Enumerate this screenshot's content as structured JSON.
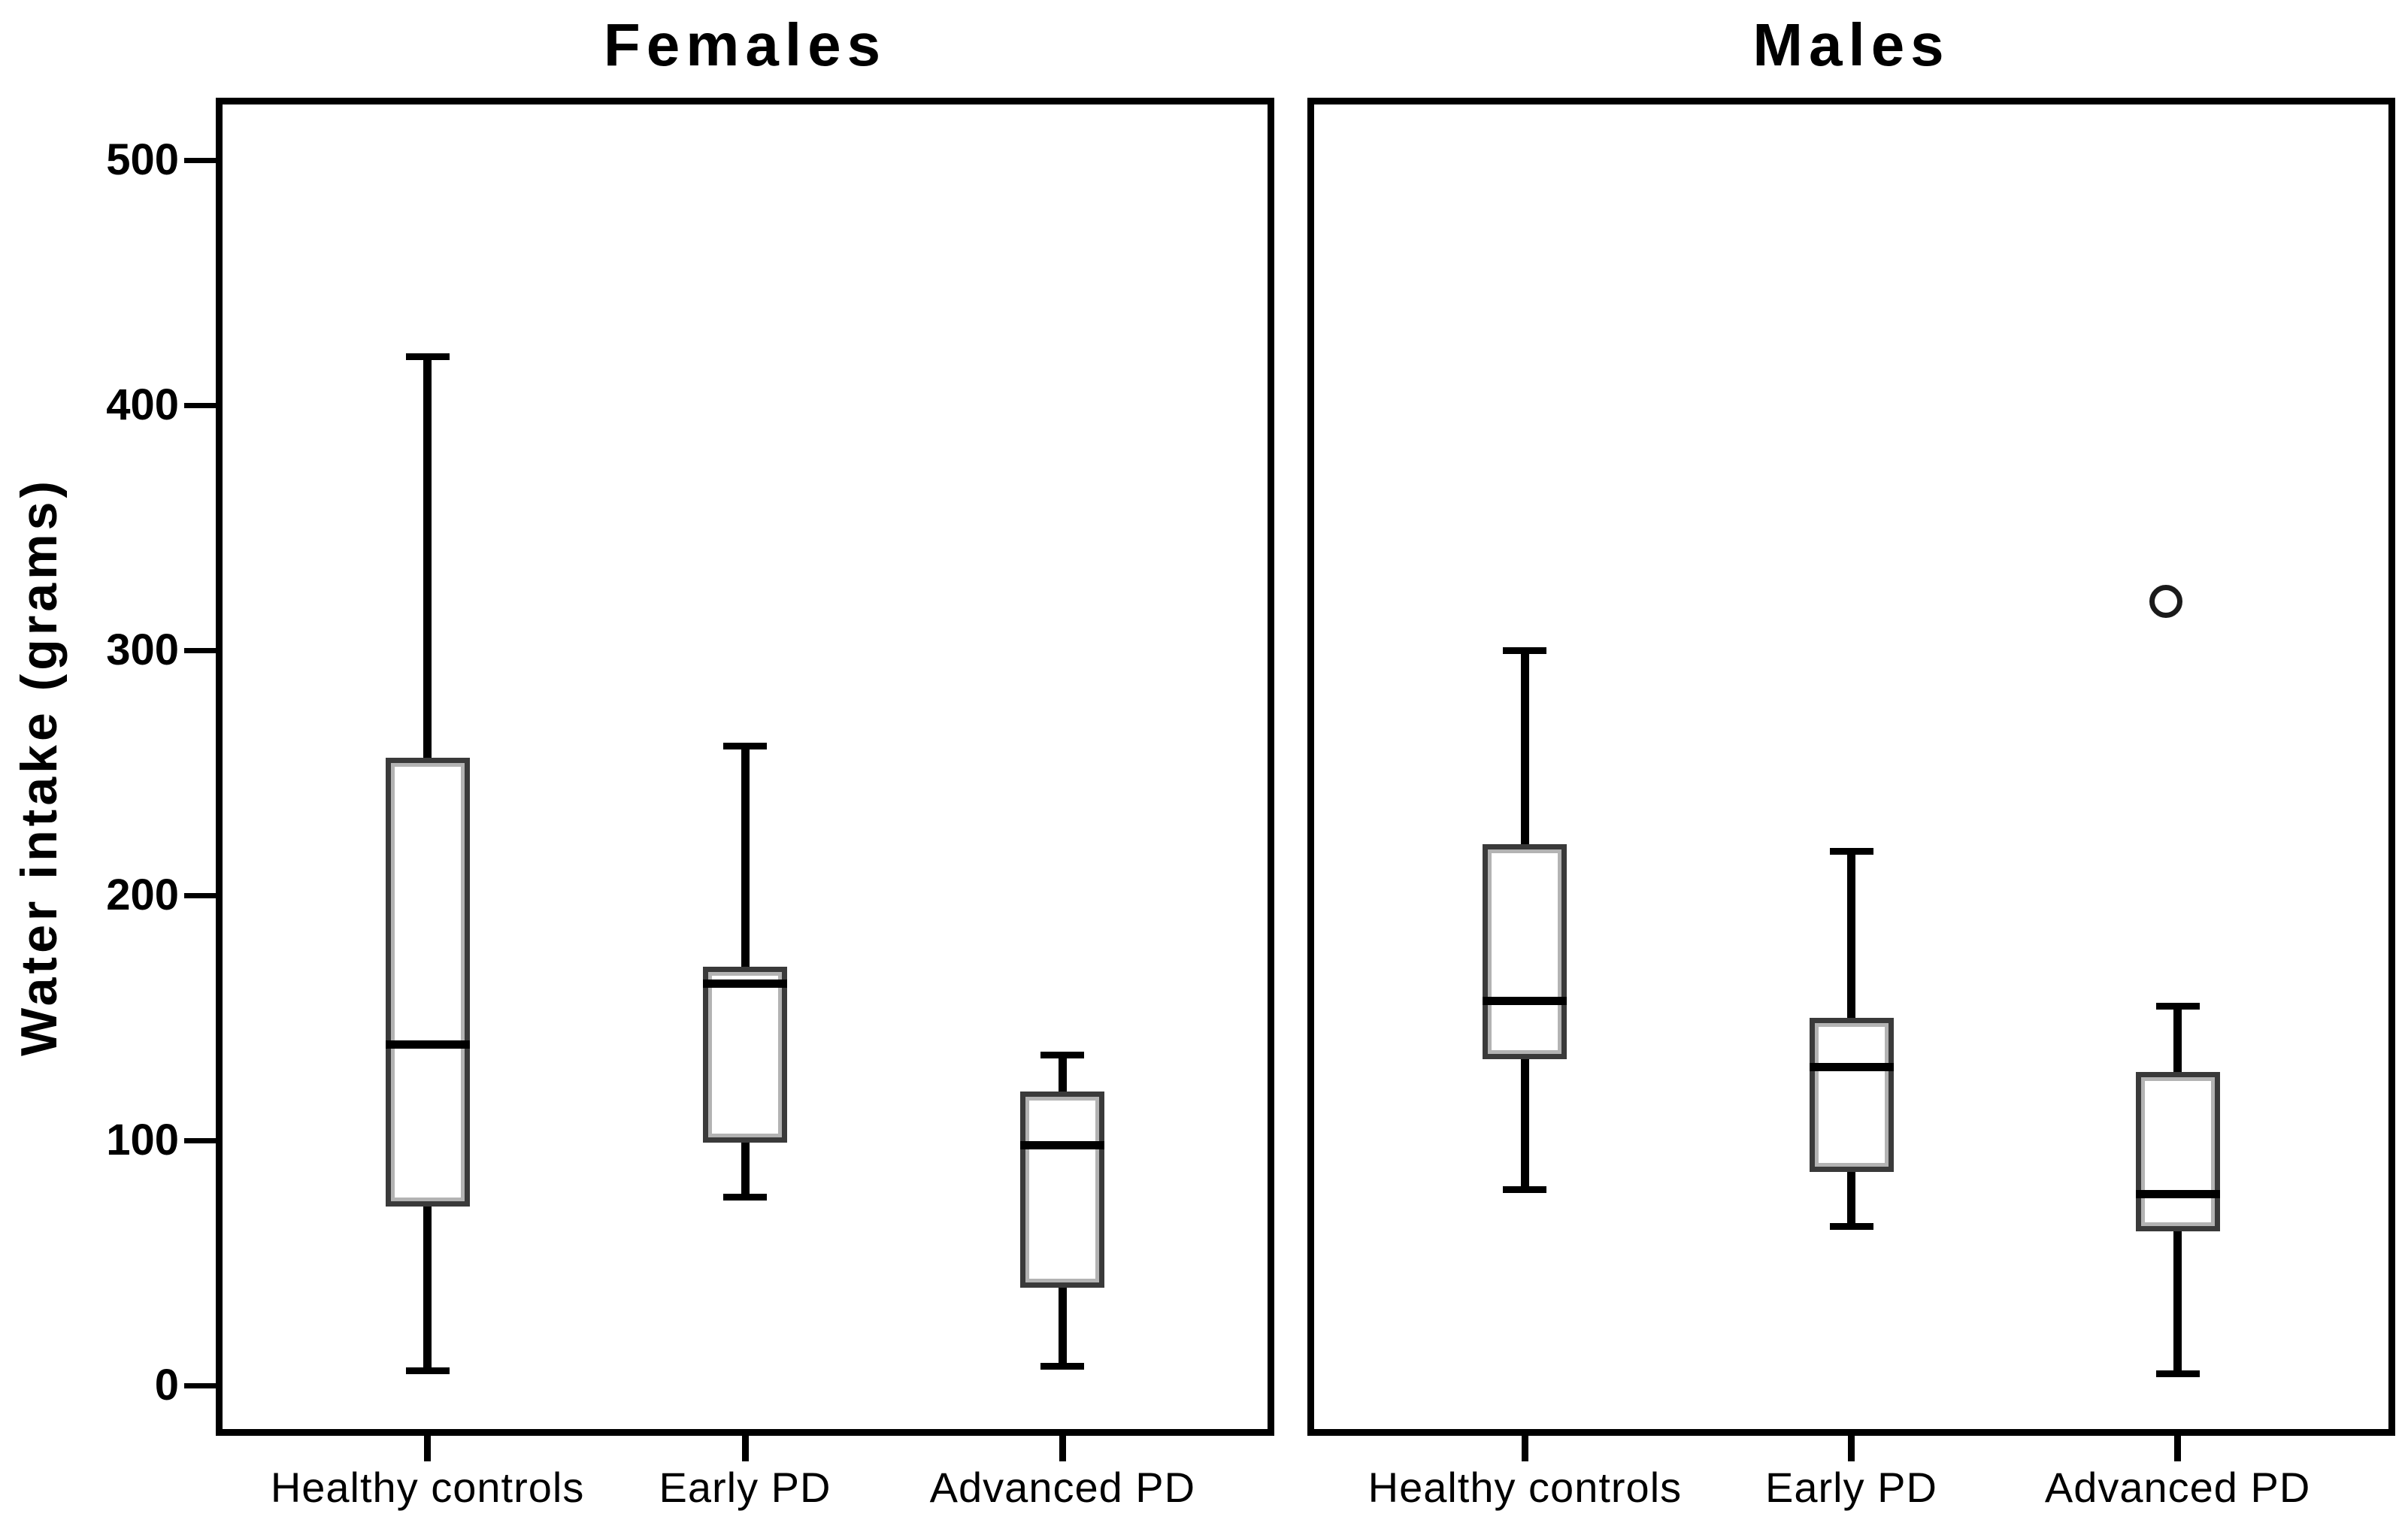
{
  "chart_data": {
    "type": "boxplot",
    "ylabel": "Water intake (grams)",
    "yticks": [
      0,
      100,
      200,
      300,
      400,
      500
    ],
    "ylim": [
      -19,
      525.5
    ],
    "grid": false,
    "legend": "none",
    "categories": [
      "Healthy controls",
      "Early PD",
      "Advanced PD"
    ],
    "panels": [
      {
        "title": "Females",
        "boxes": [
          {
            "category": "Healthy controls",
            "whisker_low": 6,
            "q1": 73,
            "median": 139,
            "q3": 256,
            "whisker_high": 420,
            "outliers": []
          },
          {
            "category": "Early PD",
            "whisker_low": 77,
            "q1": 99,
            "median": 164,
            "q3": 171,
            "whisker_high": 261,
            "outliers": []
          },
          {
            "category": "Advanced PD",
            "whisker_low": 8,
            "q1": 40,
            "median": 98,
            "q3": 120,
            "whisker_high": 135,
            "outliers": []
          }
        ]
      },
      {
        "title": "Males",
        "boxes": [
          {
            "category": "Healthy controls",
            "whisker_low": 80,
            "q1": 133,
            "median": 157,
            "q3": 221,
            "whisker_high": 300,
            "outliers": []
          },
          {
            "category": "Early PD",
            "whisker_low": 65,
            "q1": 87,
            "median": 130,
            "q3": 150,
            "whisker_high": 218,
            "outliers": []
          },
          {
            "category": "Advanced PD",
            "whisker_low": 5,
            "q1": 63,
            "median": 78,
            "q3": 128,
            "whisker_high": 155,
            "outliers": [
              320
            ]
          }
        ]
      }
    ]
  }
}
